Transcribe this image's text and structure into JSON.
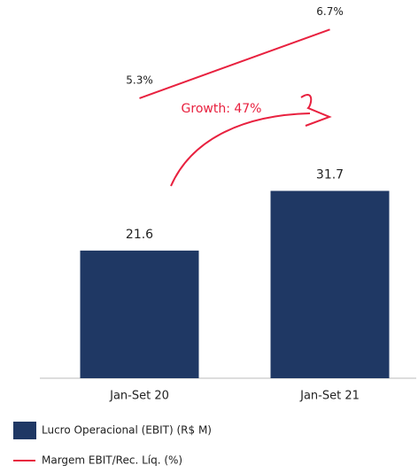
{
  "chart_data": {
    "type": "bar",
    "categories": [
      "Jan-Set 20",
      "Jan-Set 21"
    ],
    "series": [
      {
        "name": "Lucro Operacional (EBIT) (R$ M)",
        "type": "bar",
        "color": "#1f3864",
        "values": [
          21.6,
          31.7
        ]
      },
      {
        "name": "Margem EBIT/Rec. Líq. (%)",
        "type": "line",
        "color": "#e8213f",
        "axis": "y2",
        "values": [
          5.3,
          6.7
        ],
        "value_labels": [
          "5.3%",
          "6.7%"
        ]
      }
    ],
    "annotation": "Growth: 47%",
    "ylim": [
      0,
      64
    ],
    "y2lim": [
      -0.4,
      7.3
    ],
    "legend": "bottom"
  }
}
